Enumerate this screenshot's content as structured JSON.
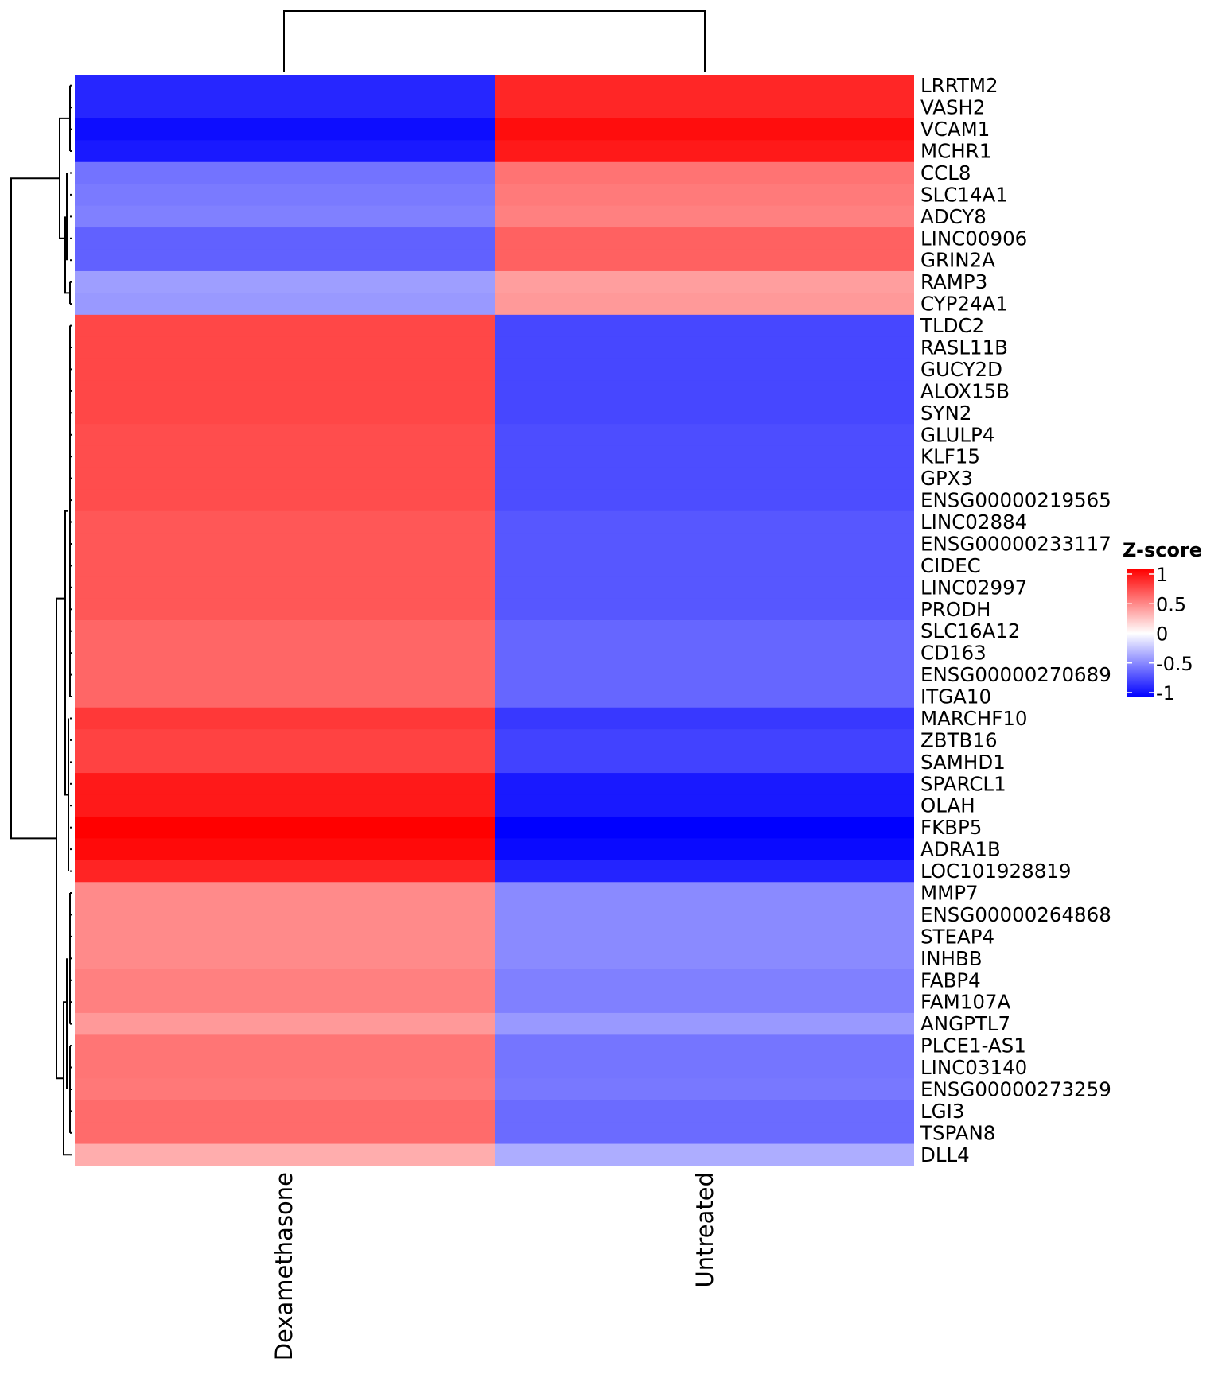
{
  "chart_data": {
    "type": "heatmap",
    "title": "",
    "columns": [
      "Dexamethasone",
      "Untreated"
    ],
    "rows": [
      "LRRTM2",
      "VASH2",
      "VCAM1",
      "MCHR1",
      "CCL8",
      "SLC14A1",
      "ADCY8",
      "LINC00906",
      "GRIN2A",
      "RAMP3",
      "CYP24A1",
      "TLDC2",
      "RASL11B",
      "GUCY2D",
      "ALOX15B",
      "SYN2",
      "GLULP4",
      "KLF15",
      "GPX3",
      "ENSG00000219565",
      "LINC02884",
      "ENSG00000233117",
      "CIDEC",
      "LINC02997",
      "PRODH",
      "SLC16A12",
      "CD163",
      "ENSG00000270689",
      "ITGA10",
      "MARCHF10",
      "ZBTB16",
      "SAMHD1",
      "SPARCL1",
      "OLAH",
      "FKBP5",
      "ADRA1B",
      "LOC101928819",
      "MMP7",
      "ENSG00000264868",
      "STEAP4",
      "INHBB",
      "FABP4",
      "FAM107A",
      "ANGPTL7",
      "PLCE1-AS1",
      "LINC03140",
      "ENSG00000273259",
      "LGI3",
      "TSPAN8",
      "DLL4"
    ],
    "values_dexamethasone": [
      -0.85,
      -0.85,
      -0.95,
      -0.9,
      -0.55,
      -0.52,
      -0.5,
      -0.62,
      -0.62,
      -0.38,
      -0.4,
      0.72,
      0.72,
      0.72,
      0.72,
      0.72,
      0.7,
      0.7,
      0.7,
      0.7,
      0.66,
      0.66,
      0.66,
      0.66,
      0.66,
      0.6,
      0.6,
      0.6,
      0.6,
      0.78,
      0.74,
      0.74,
      0.9,
      0.9,
      1.0,
      0.96,
      0.86,
      0.46,
      0.46,
      0.46,
      0.46,
      0.5,
      0.5,
      0.4,
      0.54,
      0.54,
      0.53,
      0.58,
      0.58,
      0.32
    ],
    "values_untreated": [
      0.85,
      0.85,
      0.95,
      0.9,
      0.55,
      0.52,
      0.5,
      0.62,
      0.62,
      0.38,
      0.4,
      -0.72,
      -0.72,
      -0.72,
      -0.72,
      -0.72,
      -0.7,
      -0.7,
      -0.7,
      -0.7,
      -0.66,
      -0.66,
      -0.66,
      -0.66,
      -0.66,
      -0.6,
      -0.6,
      -0.6,
      -0.6,
      -0.78,
      -0.74,
      -0.74,
      -0.9,
      -0.9,
      -1.0,
      -0.96,
      -0.86,
      -0.46,
      -0.46,
      -0.46,
      -0.46,
      -0.5,
      -0.5,
      -0.4,
      -0.54,
      -0.54,
      -0.53,
      -0.58,
      -0.58,
      -0.32
    ],
    "color_scale": {
      "low": "#0000ff",
      "mid": "#ffffff",
      "high": "#ff0000",
      "range": [
        -1,
        1
      ]
    },
    "legend": {
      "title": "Z-score",
      "ticks": [
        "1",
        "0.5",
        "0",
        "-0.5",
        "-1"
      ],
      "tick_values": [
        1,
        0.5,
        0,
        -0.5,
        -1
      ],
      "placement": "right"
    },
    "row_dendrogram": true,
    "column_dendrogram": true,
    "clusters": [
      {
        "name": "top",
        "rows": [
          0,
          10
        ]
      },
      {
        "name": "bottom",
        "rows": [
          11,
          49
        ]
      }
    ]
  }
}
